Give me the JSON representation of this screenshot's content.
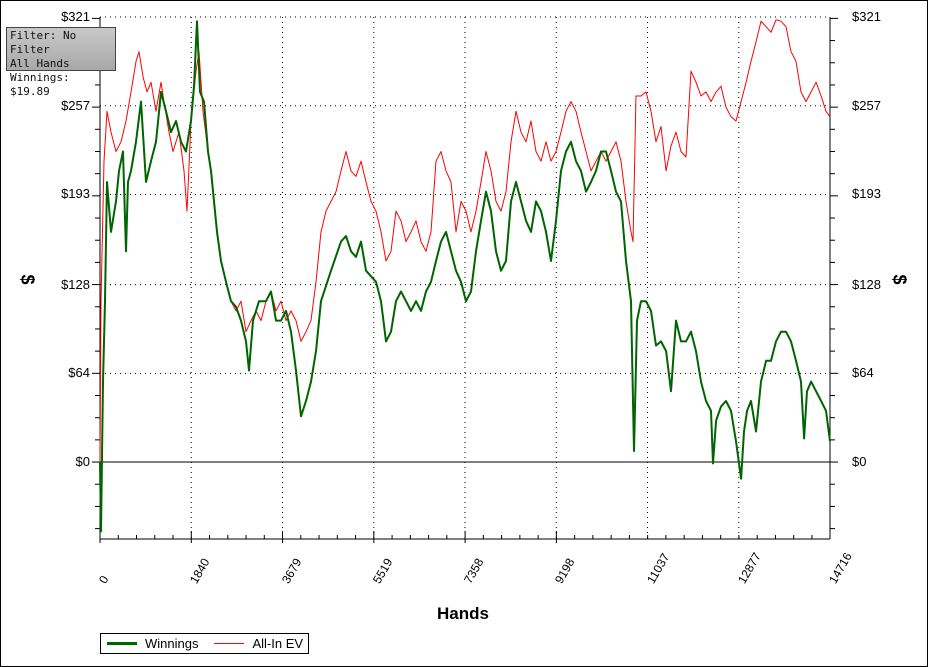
{
  "info_box": {
    "line1": "Filter: No Filter",
    "line2": "All Hands",
    "line3": "Winnings: $19.89"
  },
  "legend": {
    "winnings": "Winnings",
    "ev": "All-In EV"
  },
  "chart_data": {
    "type": "line",
    "xlabel": "Hands",
    "ylabel": "$",
    "xlim": [
      0,
      14716
    ],
    "ylim": [
      -55.5,
      321
    ],
    "x_ticks": [
      0,
      1840,
      3679,
      5519,
      7358,
      9198,
      11037,
      12877,
      14716
    ],
    "x_tick_labels": [
      "0",
      "1840",
      "3679",
      "5519",
      "7358",
      "9198",
      "11037",
      "12877",
      "14716"
    ],
    "y_ticks": [
      0,
      64,
      128,
      193,
      257,
      321
    ],
    "y_tick_labels": [
      "$0",
      "$64",
      "$128",
      "$193",
      "$257",
      "$321"
    ],
    "grid": true,
    "legend_position": "bottom-left",
    "colors": {
      "winnings": "#006400",
      "ev": "#ff0000"
    },
    "series": [
      {
        "name": "All-In EV",
        "points": [
          [
            0,
            0
          ],
          [
            20,
            116
          ],
          [
            81,
            217
          ],
          [
            141,
            253
          ],
          [
            222,
            238
          ],
          [
            323,
            224
          ],
          [
            423,
            231
          ],
          [
            524,
            246
          ],
          [
            625,
            267
          ],
          [
            726,
            289
          ],
          [
            786,
            296
          ],
          [
            867,
            278
          ],
          [
            948,
            267
          ],
          [
            1028,
            274
          ],
          [
            1129,
            253
          ],
          [
            1230,
            274
          ],
          [
            1290,
            260
          ],
          [
            1391,
            238
          ],
          [
            1472,
            224
          ],
          [
            1593,
            238
          ],
          [
            1693,
            210
          ],
          [
            1754,
            181
          ],
          [
            1835,
            246
          ],
          [
            1935,
            282
          ],
          [
            1996,
            296
          ],
          [
            2077,
            253
          ],
          [
            2177,
            224
          ],
          [
            2258,
            206
          ],
          [
            2339,
            174
          ],
          [
            2439,
            145
          ],
          [
            2540,
            130
          ],
          [
            2641,
            116
          ],
          [
            2742,
            109
          ],
          [
            2843,
            116
          ],
          [
            2943,
            94
          ],
          [
            3044,
            102
          ],
          [
            3145,
            109
          ],
          [
            3246,
            102
          ],
          [
            3347,
            116
          ],
          [
            3447,
            123
          ],
          [
            3548,
            109
          ],
          [
            3649,
            116
          ],
          [
            3750,
            102
          ],
          [
            3851,
            109
          ],
          [
            3951,
            102
          ],
          [
            4052,
            87
          ],
          [
            4153,
            94
          ],
          [
            4254,
            102
          ],
          [
            4355,
            130
          ],
          [
            4455,
            166
          ],
          [
            4556,
            181
          ],
          [
            4657,
            188
          ],
          [
            4758,
            195
          ],
          [
            4859,
            210
          ],
          [
            4959,
            224
          ],
          [
            5060,
            210
          ],
          [
            5161,
            206
          ],
          [
            5262,
            217
          ],
          [
            5363,
            202
          ],
          [
            5463,
            188
          ],
          [
            5564,
            181
          ],
          [
            5665,
            166
          ],
          [
            5766,
            145
          ],
          [
            5866,
            152
          ],
          [
            5967,
            181
          ],
          [
            6068,
            174
          ],
          [
            6169,
            159
          ],
          [
            6270,
            166
          ],
          [
            6371,
            174
          ],
          [
            6471,
            159
          ],
          [
            6572,
            152
          ],
          [
            6673,
            166
          ],
          [
            6774,
            217
          ],
          [
            6875,
            224
          ],
          [
            6975,
            210
          ],
          [
            7076,
            202
          ],
          [
            7177,
            166
          ],
          [
            7278,
            188
          ],
          [
            7379,
            181
          ],
          [
            7479,
            166
          ],
          [
            7580,
            181
          ],
          [
            7681,
            202
          ],
          [
            7782,
            224
          ],
          [
            7883,
            210
          ],
          [
            7983,
            188
          ],
          [
            8084,
            181
          ],
          [
            8185,
            195
          ],
          [
            8286,
            231
          ],
          [
            8387,
            253
          ],
          [
            8487,
            238
          ],
          [
            8588,
            231
          ],
          [
            8689,
            246
          ],
          [
            8790,
            224
          ],
          [
            8891,
            217
          ],
          [
            8991,
            231
          ],
          [
            9092,
            217
          ],
          [
            9193,
            224
          ],
          [
            9294,
            238
          ],
          [
            9395,
            253
          ],
          [
            9495,
            260
          ],
          [
            9596,
            253
          ],
          [
            9697,
            238
          ],
          [
            9798,
            224
          ],
          [
            9899,
            210
          ],
          [
            9999,
            217
          ],
          [
            10100,
            224
          ],
          [
            10201,
            217
          ],
          [
            10302,
            224
          ],
          [
            10403,
            231
          ],
          [
            10503,
            217
          ],
          [
            10604,
            188
          ],
          [
            10705,
            166
          ],
          [
            10745,
            159
          ],
          [
            10806,
            264
          ],
          [
            10906,
            264
          ],
          [
            11007,
            267
          ],
          [
            11108,
            253
          ],
          [
            11209,
            231
          ],
          [
            11310,
            242
          ],
          [
            11411,
            210
          ],
          [
            11511,
            228
          ],
          [
            11612,
            238
          ],
          [
            11713,
            224
          ],
          [
            11814,
            220
          ],
          [
            11914,
            282
          ],
          [
            12015,
            274
          ],
          [
            12116,
            264
          ],
          [
            12217,
            267
          ],
          [
            12318,
            260
          ],
          [
            12419,
            267
          ],
          [
            12519,
            271
          ],
          [
            12620,
            256
          ],
          [
            12721,
            249
          ],
          [
            12822,
            246
          ],
          [
            12923,
            260
          ],
          [
            13024,
            274
          ],
          [
            13124,
            289
          ],
          [
            13225,
            303
          ],
          [
            13326,
            318
          ],
          [
            13427,
            314
          ],
          [
            13527,
            310
          ],
          [
            13628,
            319
          ],
          [
            13729,
            318
          ],
          [
            13830,
            314
          ],
          [
            13930,
            296
          ],
          [
            14031,
            289
          ],
          [
            14132,
            267
          ],
          [
            14233,
            260
          ],
          [
            14334,
            267
          ],
          [
            14435,
            274
          ],
          [
            14536,
            264
          ],
          [
            14636,
            253
          ],
          [
            14716,
            249
          ]
        ]
      },
      {
        "name": "Winnings",
        "points": [
          [
            0,
            0
          ],
          [
            20,
            -50
          ],
          [
            60,
            58
          ],
          [
            100,
            116
          ],
          [
            141,
            202
          ],
          [
            222,
            166
          ],
          [
            323,
            188
          ],
          [
            383,
            210
          ],
          [
            464,
            224
          ],
          [
            524,
            152
          ],
          [
            564,
            202
          ],
          [
            625,
            210
          ],
          [
            726,
            231
          ],
          [
            827,
            260
          ],
          [
            927,
            202
          ],
          [
            1028,
            217
          ],
          [
            1129,
            231
          ],
          [
            1230,
            267
          ],
          [
            1331,
            253
          ],
          [
            1431,
            238
          ],
          [
            1532,
            246
          ],
          [
            1633,
            231
          ],
          [
            1734,
            224
          ],
          [
            1835,
            246
          ],
          [
            1895,
            271
          ],
          [
            1956,
            318
          ],
          [
            2016,
            267
          ],
          [
            2097,
            260
          ],
          [
            2177,
            224
          ],
          [
            2238,
            210
          ],
          [
            2298,
            188
          ],
          [
            2359,
            166
          ],
          [
            2439,
            145
          ],
          [
            2540,
            130
          ],
          [
            2641,
            116
          ],
          [
            2742,
            112
          ],
          [
            2843,
            102
          ],
          [
            2943,
            87
          ],
          [
            3004,
            66
          ],
          [
            3084,
            102
          ],
          [
            3205,
            116
          ],
          [
            3347,
            116
          ],
          [
            3447,
            123
          ],
          [
            3548,
            102
          ],
          [
            3649,
            102
          ],
          [
            3750,
            109
          ],
          [
            3851,
            94
          ],
          [
            3951,
            66
          ],
          [
            4052,
            33
          ],
          [
            4153,
            44
          ],
          [
            4254,
            58
          ],
          [
            4355,
            80
          ],
          [
            4455,
            116
          ],
          [
            4657,
            138
          ],
          [
            4859,
            159
          ],
          [
            4959,
            163
          ],
          [
            5060,
            152
          ],
          [
            5161,
            148
          ],
          [
            5262,
            159
          ],
          [
            5363,
            138
          ],
          [
            5463,
            134
          ],
          [
            5564,
            130
          ],
          [
            5665,
            116
          ],
          [
            5766,
            87
          ],
          [
            5866,
            94
          ],
          [
            5967,
            116
          ],
          [
            6068,
            123
          ],
          [
            6169,
            116
          ],
          [
            6270,
            109
          ],
          [
            6371,
            116
          ],
          [
            6471,
            109
          ],
          [
            6572,
            123
          ],
          [
            6673,
            130
          ],
          [
            6774,
            145
          ],
          [
            6875,
            159
          ],
          [
            6975,
            166
          ],
          [
            7076,
            152
          ],
          [
            7177,
            138
          ],
          [
            7278,
            130
          ],
          [
            7379,
            116
          ],
          [
            7479,
            123
          ],
          [
            7580,
            152
          ],
          [
            7681,
            174
          ],
          [
            7782,
            195
          ],
          [
            7883,
            181
          ],
          [
            7983,
            152
          ],
          [
            8084,
            138
          ],
          [
            8185,
            145
          ],
          [
            8286,
            188
          ],
          [
            8387,
            202
          ],
          [
            8487,
            188
          ],
          [
            8588,
            174
          ],
          [
            8689,
            166
          ],
          [
            8790,
            188
          ],
          [
            8891,
            181
          ],
          [
            8991,
            166
          ],
          [
            9092,
            145
          ],
          [
            9193,
            174
          ],
          [
            9294,
            210
          ],
          [
            9395,
            224
          ],
          [
            9495,
            231
          ],
          [
            9596,
            217
          ],
          [
            9697,
            210
          ],
          [
            9798,
            195
          ],
          [
            9899,
            202
          ],
          [
            9999,
            210
          ],
          [
            10100,
            224
          ],
          [
            10201,
            224
          ],
          [
            10302,
            210
          ],
          [
            10403,
            195
          ],
          [
            10503,
            188
          ],
          [
            10604,
            145
          ],
          [
            10705,
            116
          ],
          [
            10765,
            8
          ],
          [
            10826,
            102
          ],
          [
            10906,
            116
          ],
          [
            11007,
            116
          ],
          [
            11108,
            109
          ],
          [
            11209,
            84
          ],
          [
            11310,
            87
          ],
          [
            11411,
            80
          ],
          [
            11511,
            51
          ],
          [
            11612,
            102
          ],
          [
            11713,
            87
          ],
          [
            11814,
            87
          ],
          [
            11914,
            94
          ],
          [
            12015,
            80
          ],
          [
            12116,
            58
          ],
          [
            12217,
            44
          ],
          [
            12318,
            37
          ],
          [
            12358,
            -1
          ],
          [
            12419,
            30
          ],
          [
            12519,
            40
          ],
          [
            12620,
            44
          ],
          [
            12721,
            37
          ],
          [
            12822,
            15
          ],
          [
            12923,
            -12
          ],
          [
            12983,
            22
          ],
          [
            13044,
            37
          ],
          [
            13124,
            44
          ],
          [
            13225,
            22
          ],
          [
            13326,
            58
          ],
          [
            13427,
            73
          ],
          [
            13527,
            73
          ],
          [
            13628,
            87
          ],
          [
            13729,
            94
          ],
          [
            13830,
            94
          ],
          [
            13930,
            87
          ],
          [
            14031,
            73
          ],
          [
            14132,
            58
          ],
          [
            14193,
            17
          ],
          [
            14253,
            51
          ],
          [
            14334,
            58
          ],
          [
            14435,
            51
          ],
          [
            14536,
            44
          ],
          [
            14636,
            37
          ],
          [
            14716,
            15
          ]
        ]
      }
    ]
  }
}
